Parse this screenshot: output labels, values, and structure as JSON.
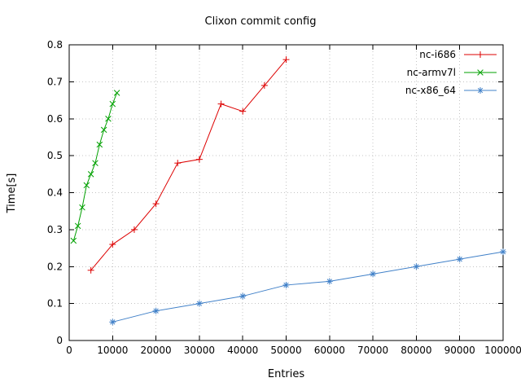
{
  "chart_data": {
    "type": "line",
    "title": "Clixon commit config",
    "xlabel": "Entries",
    "ylabel": "Time[s]",
    "xlim": [
      0,
      100000
    ],
    "ylim": [
      0,
      0.8
    ],
    "grid": true,
    "legend_position": "top-right-inside",
    "grid_color": "#c4c4c4",
    "xtick_values": [
      0,
      10000,
      20000,
      30000,
      40000,
      50000,
      60000,
      70000,
      80000,
      90000,
      100000
    ],
    "xtick_labels": [
      "0",
      "10000",
      "20000",
      "30000",
      "40000",
      "50000",
      "60000",
      "70000",
      "80000",
      "90000",
      "100000"
    ],
    "ytick_values": [
      0,
      0.1,
      0.2,
      0.3,
      0.4,
      0.5,
      0.6,
      0.7,
      0.8
    ],
    "ytick_labels": [
      "0",
      "0.1",
      "0.2",
      "0.3",
      "0.4",
      "0.5",
      "0.6",
      "0.7",
      "0.8"
    ],
    "series": [
      {
        "name": "nc-i686",
        "color": "#dd0000",
        "marker": "plus",
        "x": [
          5000,
          10000,
          15000,
          20000,
          25000,
          30000,
          35000,
          40000,
          45000,
          50000
        ],
        "y": [
          0.19,
          0.26,
          0.3,
          0.37,
          0.48,
          0.49,
          0.64,
          0.62,
          0.69,
          0.76
        ]
      },
      {
        "name": "nc-armv7l",
        "color": "#00a000",
        "marker": "cross",
        "x": [
          1000,
          2000,
          3000,
          4000,
          5000,
          6000,
          7000,
          8000,
          9000,
          10000,
          11000
        ],
        "y": [
          0.27,
          0.31,
          0.36,
          0.42,
          0.45,
          0.48,
          0.53,
          0.57,
          0.6,
          0.64,
          0.67
        ]
      },
      {
        "name": "nc-x86_64",
        "color": "#4080c8",
        "marker": "asterisk",
        "x": [
          10000,
          20000,
          30000,
          40000,
          50000,
          60000,
          70000,
          80000,
          90000,
          100000
        ],
        "y": [
          0.05,
          0.08,
          0.1,
          0.12,
          0.15,
          0.16,
          0.18,
          0.2,
          0.22,
          0.24
        ]
      }
    ]
  }
}
